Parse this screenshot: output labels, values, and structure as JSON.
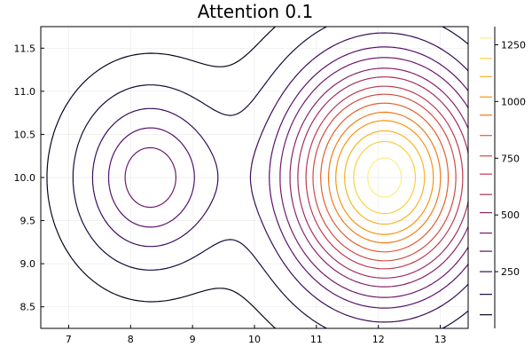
{
  "chart_data": {
    "type": "contour",
    "title": "Attention 0.1",
    "xlabel": "",
    "ylabel": "",
    "xlim": [
      6.55,
      13.45
    ],
    "ylim": [
      8.25,
      11.75
    ],
    "x_ticks": [
      7,
      8,
      9,
      10,
      11,
      12,
      13
    ],
    "x_tick_labels": [
      "7",
      "8",
      "9",
      "10",
      "11",
      "12",
      "13"
    ],
    "y_ticks": [
      8.5,
      9.0,
      9.5,
      10.0,
      10.5,
      11.0,
      11.5
    ],
    "y_tick_labels": [
      "8.5",
      "9.0",
      "9.5",
      "10.0",
      "10.5",
      "11.0",
      "11.5"
    ],
    "grid": true,
    "colorbar": {
      "colormap": "inferno",
      "ticks": [
        250,
        500,
        750,
        1000,
        1250
      ],
      "tick_labels": [
        "250",
        "500",
        "750",
        "1000",
        "1250"
      ],
      "range": [
        0,
        1330
      ],
      "level_marks": [
        60,
        150,
        250,
        340,
        420,
        510,
        590,
        680,
        760,
        850,
        940,
        1020,
        1110,
        1190,
        1280
      ]
    },
    "peaks": [
      {
        "x": 8.3,
        "y": 10.0,
        "value": 470
      },
      {
        "x": 12.1,
        "y": 10.0,
        "value": 1320
      }
    ],
    "levels": [
      60,
      150,
      250,
      340,
      420,
      510,
      590,
      680,
      760,
      850,
      940,
      1020,
      1110,
      1190,
      1280
    ]
  }
}
